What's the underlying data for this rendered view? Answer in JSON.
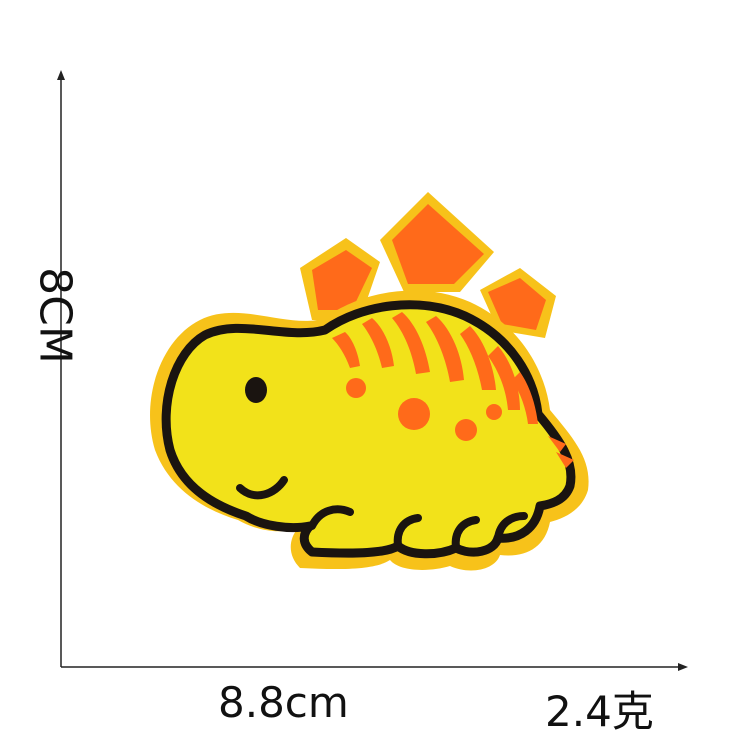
{
  "dimensions": {
    "height_label": "8CM",
    "width_label": "8.8cm",
    "weight_label": "2.4克"
  },
  "colors": {
    "patch_yellow": "#f2e21a",
    "outline": "#1a1410",
    "spike_orange": "#ff6a1a",
    "edge_yellow": "#f7c21a"
  },
  "icons": {
    "patch": "stegosaurus-dinosaur-patch"
  }
}
